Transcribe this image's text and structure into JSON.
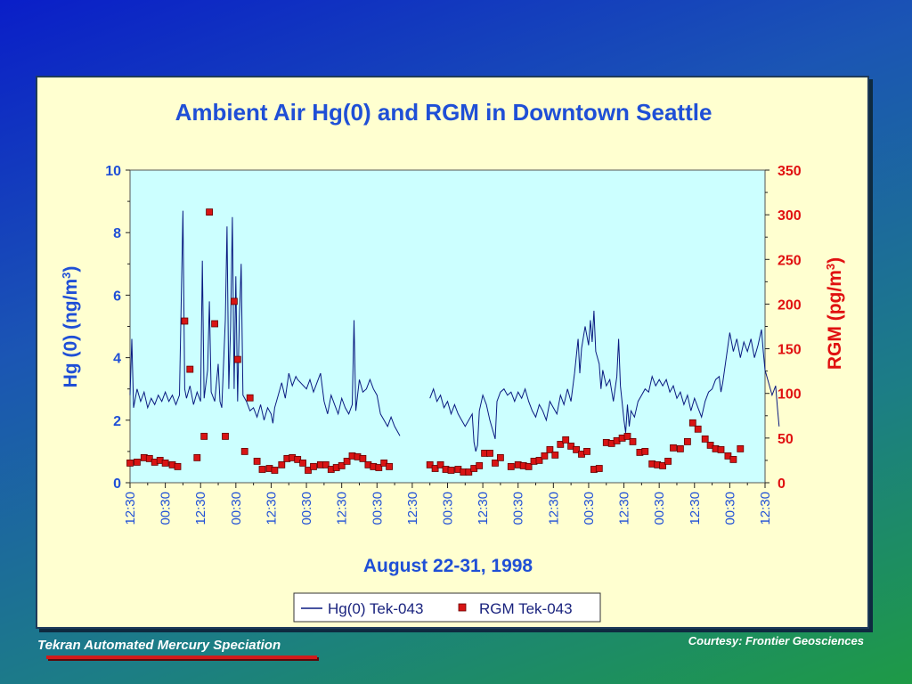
{
  "footer": {
    "left_text": "Tekran Automated Mercury Speciation",
    "right_text": "Courtesy: Frontier Geosciences"
  },
  "colors": {
    "title": "#1f4fd6",
    "left_axis": "#1f4fd6",
    "right_axis": "#e01010",
    "hg_line": "#0a1a80",
    "rgm_marker": "#d81414",
    "plot_bg": "#ccffff",
    "panel_bg": "#ffffd0"
  },
  "chart_data": {
    "type": "line",
    "title": "Ambient Air Hg(0) and RGM in Downtown Seattle",
    "xlabel": "August 22-31, 1998",
    "ylabel_left": "Hg (0) (ng/m3)",
    "ylabel_right": "RGM (pg/m3)",
    "ylim_left": [
      0,
      10
    ],
    "ylim_right": [
      0,
      350
    ],
    "yticks_left": [
      "0",
      "2",
      "4",
      "6",
      "8",
      "10"
    ],
    "yticks_right": [
      "0",
      "50",
      "100",
      "150",
      "200",
      "250",
      "300",
      "350"
    ],
    "x_tick_labels": [
      "12:30",
      "00:30",
      "12:30",
      "00:30",
      "12:30",
      "00:30",
      "12:30",
      "00:30",
      "12:30",
      "00:30",
      "12:30",
      "00:30",
      "12:30",
      "00:30",
      "12:30",
      "00:30",
      "12:30",
      "00:30",
      "12:30"
    ],
    "legend": [
      "Hg(0) Tek-043",
      "RGM Tek-043"
    ],
    "legend_placement": "bottom",
    "series": [
      {
        "name": "Hg(0) Tek-043",
        "axis": "left",
        "style": "line",
        "points": [
          [
            0.0,
            2.8
          ],
          [
            0.05,
            4.6
          ],
          [
            0.1,
            2.4
          ],
          [
            0.2,
            3.0
          ],
          [
            0.3,
            2.6
          ],
          [
            0.4,
            2.9
          ],
          [
            0.5,
            2.4
          ],
          [
            0.6,
            2.7
          ],
          [
            0.7,
            2.5
          ],
          [
            0.8,
            2.8
          ],
          [
            0.9,
            2.6
          ],
          [
            1.0,
            2.9
          ],
          [
            1.1,
            2.6
          ],
          [
            1.2,
            2.8
          ],
          [
            1.3,
            2.5
          ],
          [
            1.4,
            2.8
          ],
          [
            1.5,
            8.7
          ],
          [
            1.55,
            3.0
          ],
          [
            1.6,
            2.7
          ],
          [
            1.7,
            3.1
          ],
          [
            1.8,
            2.5
          ],
          [
            1.9,
            2.9
          ],
          [
            2.0,
            2.6
          ],
          [
            2.05,
            7.1
          ],
          [
            2.1,
            2.7
          ],
          [
            2.2,
            3.6
          ],
          [
            2.25,
            5.8
          ],
          [
            2.3,
            2.9
          ],
          [
            2.4,
            2.6
          ],
          [
            2.5,
            3.8
          ],
          [
            2.55,
            2.6
          ],
          [
            2.6,
            2.4
          ],
          [
            2.7,
            5.2
          ],
          [
            2.75,
            8.2
          ],
          [
            2.8,
            3.0
          ],
          [
            2.85,
            5.0
          ],
          [
            2.9,
            8.5
          ],
          [
            2.95,
            3.0
          ],
          [
            3.0,
            6.6
          ],
          [
            3.05,
            2.6
          ],
          [
            3.1,
            5.3
          ],
          [
            3.15,
            7.0
          ],
          [
            3.2,
            2.8
          ],
          [
            3.3,
            2.6
          ],
          [
            3.4,
            2.3
          ],
          [
            3.5,
            2.4
          ],
          [
            3.6,
            2.1
          ],
          [
            3.7,
            2.5
          ],
          [
            3.8,
            2.0
          ],
          [
            3.9,
            2.4
          ],
          [
            4.0,
            2.2
          ],
          [
            4.05,
            1.9
          ],
          [
            4.1,
            2.4
          ],
          [
            4.2,
            2.8
          ],
          [
            4.3,
            3.2
          ],
          [
            4.4,
            2.7
          ],
          [
            4.5,
            3.5
          ],
          [
            4.6,
            3.1
          ],
          [
            4.7,
            3.4
          ],
          [
            4.75,
            3.3
          ],
          [
            5.0,
            3.0
          ],
          [
            5.1,
            3.3
          ],
          [
            5.2,
            2.9
          ],
          [
            5.3,
            3.2
          ],
          [
            5.4,
            3.5
          ],
          [
            5.5,
            2.6
          ],
          [
            5.6,
            2.2
          ],
          [
            5.7,
            2.8
          ],
          [
            5.8,
            2.5
          ],
          [
            5.9,
            2.2
          ],
          [
            6.0,
            2.7
          ],
          [
            6.1,
            2.4
          ],
          [
            6.2,
            2.2
          ],
          [
            6.3,
            2.5
          ],
          [
            6.35,
            5.2
          ],
          [
            6.4,
            2.3
          ],
          [
            6.5,
            3.3
          ],
          [
            6.6,
            2.9
          ],
          [
            6.7,
            3.0
          ],
          [
            6.8,
            3.3
          ],
          [
            6.9,
            3.0
          ],
          [
            7.0,
            2.8
          ],
          [
            7.1,
            2.2
          ],
          [
            7.2,
            2.0
          ],
          [
            7.3,
            1.8
          ],
          [
            7.4,
            2.1
          ],
          [
            7.5,
            1.8
          ],
          [
            7.6,
            1.6
          ],
          [
            7.65,
            1.5
          ],
          [
            8.5,
            2.7
          ],
          [
            8.6,
            3.0
          ],
          [
            8.7,
            2.6
          ],
          [
            8.8,
            2.8
          ],
          [
            8.9,
            2.4
          ],
          [
            9.0,
            2.6
          ],
          [
            9.1,
            2.2
          ],
          [
            9.2,
            2.5
          ],
          [
            9.3,
            2.2
          ],
          [
            9.4,
            2.0
          ],
          [
            9.5,
            1.8
          ],
          [
            9.6,
            2.0
          ],
          [
            9.7,
            2.2
          ],
          [
            9.75,
            1.3
          ],
          [
            9.8,
            1.0
          ],
          [
            9.85,
            1.2
          ],
          [
            9.9,
            2.3
          ],
          [
            10.0,
            2.8
          ],
          [
            10.1,
            2.5
          ],
          [
            10.2,
            2.0
          ],
          [
            10.3,
            1.6
          ],
          [
            10.35,
            1.4
          ],
          [
            10.4,
            2.6
          ],
          [
            10.5,
            2.9
          ],
          [
            10.6,
            3.0
          ],
          [
            10.7,
            2.8
          ],
          [
            10.8,
            2.9
          ],
          [
            10.9,
            2.6
          ],
          [
            11.0,
            2.9
          ],
          [
            11.1,
            2.7
          ],
          [
            11.2,
            3.0
          ],
          [
            11.3,
            2.6
          ],
          [
            11.4,
            2.3
          ],
          [
            11.5,
            2.1
          ],
          [
            11.6,
            2.5
          ],
          [
            11.7,
            2.3
          ],
          [
            11.8,
            2.0
          ],
          [
            11.9,
            2.6
          ],
          [
            12.0,
            2.4
          ],
          [
            12.1,
            2.2
          ],
          [
            12.2,
            2.8
          ],
          [
            12.3,
            2.5
          ],
          [
            12.4,
            3.0
          ],
          [
            12.5,
            2.6
          ],
          [
            12.6,
            3.5
          ],
          [
            12.7,
            4.6
          ],
          [
            12.75,
            3.5
          ],
          [
            12.8,
            4.3
          ],
          [
            12.9,
            5.0
          ],
          [
            13.0,
            4.4
          ],
          [
            13.05,
            5.2
          ],
          [
            13.1,
            4.5
          ],
          [
            13.15,
            5.5
          ],
          [
            13.2,
            4.2
          ],
          [
            13.3,
            3.8
          ],
          [
            13.35,
            3.0
          ],
          [
            13.4,
            3.6
          ],
          [
            13.5,
            3.1
          ],
          [
            13.6,
            3.3
          ],
          [
            13.7,
            2.6
          ],
          [
            13.8,
            3.4
          ],
          [
            13.85,
            4.6
          ],
          [
            13.9,
            3.1
          ],
          [
            14.0,
            2.0
          ],
          [
            14.05,
            1.6
          ],
          [
            14.1,
            2.5
          ],
          [
            14.15,
            1.8
          ],
          [
            14.2,
            2.3
          ],
          [
            14.3,
            2.1
          ],
          [
            14.4,
            2.6
          ],
          [
            14.5,
            2.8
          ],
          [
            14.6,
            3.0
          ],
          [
            14.7,
            2.9
          ],
          [
            14.8,
            3.4
          ],
          [
            14.9,
            3.1
          ],
          [
            15.0,
            3.3
          ],
          [
            15.1,
            3.1
          ],
          [
            15.2,
            3.3
          ],
          [
            15.3,
            2.9
          ],
          [
            15.4,
            3.1
          ],
          [
            15.5,
            2.7
          ],
          [
            15.6,
            2.9
          ],
          [
            15.7,
            2.5
          ],
          [
            15.8,
            2.8
          ],
          [
            15.9,
            2.3
          ],
          [
            16.0,
            2.7
          ],
          [
            16.1,
            2.4
          ],
          [
            16.2,
            2.1
          ],
          [
            16.3,
            2.6
          ],
          [
            16.4,
            2.9
          ],
          [
            16.5,
            3.0
          ],
          [
            16.6,
            3.3
          ],
          [
            16.7,
            3.4
          ],
          [
            16.75,
            2.9
          ],
          [
            16.8,
            3.2
          ],
          [
            17.0,
            4.8
          ],
          [
            17.1,
            4.2
          ],
          [
            17.2,
            4.6
          ],
          [
            17.3,
            4.0
          ],
          [
            17.4,
            4.5
          ],
          [
            17.5,
            4.2
          ],
          [
            17.6,
            4.6
          ],
          [
            17.7,
            4.0
          ],
          [
            17.8,
            4.4
          ],
          [
            17.9,
            4.9
          ],
          [
            17.95,
            4.2
          ],
          [
            18.0,
            3.6
          ],
          [
            18.1,
            3.2
          ],
          [
            18.2,
            2.8
          ],
          [
            18.3,
            3.1
          ],
          [
            18.35,
            2.4
          ],
          [
            18.4,
            1.8
          ]
        ]
      },
      {
        "name": "RGM Tek-043",
        "axis": "right",
        "style": "markers",
        "points": [
          [
            0.0,
            22
          ],
          [
            0.2,
            23
          ],
          [
            0.4,
            28
          ],
          [
            0.55,
            27
          ],
          [
            0.7,
            23
          ],
          [
            0.85,
            25
          ],
          [
            1.0,
            22
          ],
          [
            1.2,
            20
          ],
          [
            1.35,
            18
          ],
          [
            1.55,
            181
          ],
          [
            1.7,
            127
          ],
          [
            1.9,
            28
          ],
          [
            2.1,
            52
          ],
          [
            2.25,
            303
          ],
          [
            2.4,
            178
          ],
          [
            2.7,
            52
          ],
          [
            2.95,
            203
          ],
          [
            3.05,
            138
          ],
          [
            3.25,
            35
          ],
          [
            3.4,
            95
          ],
          [
            3.6,
            24
          ],
          [
            3.75,
            15
          ],
          [
            3.95,
            16
          ],
          [
            4.1,
            14
          ],
          [
            4.3,
            20
          ],
          [
            4.45,
            27
          ],
          [
            4.6,
            28
          ],
          [
            4.75,
            26
          ],
          [
            4.9,
            22
          ],
          [
            5.05,
            14
          ],
          [
            5.2,
            18
          ],
          [
            5.4,
            20
          ],
          [
            5.55,
            20
          ],
          [
            5.7,
            15
          ],
          [
            5.85,
            17
          ],
          [
            6.0,
            19
          ],
          [
            6.15,
            24
          ],
          [
            6.3,
            30
          ],
          [
            6.45,
            29
          ],
          [
            6.6,
            27
          ],
          [
            6.75,
            20
          ],
          [
            6.9,
            18
          ],
          [
            7.05,
            17
          ],
          [
            7.2,
            22
          ],
          [
            7.35,
            18
          ],
          [
            8.5,
            20
          ],
          [
            8.65,
            16
          ],
          [
            8.8,
            20
          ],
          [
            8.95,
            15
          ],
          [
            9.1,
            14
          ],
          [
            9.3,
            15
          ],
          [
            9.45,
            12
          ],
          [
            9.6,
            12
          ],
          [
            9.75,
            16
          ],
          [
            9.9,
            19
          ],
          [
            10.05,
            33
          ],
          [
            10.2,
            33
          ],
          [
            10.35,
            22
          ],
          [
            10.5,
            28
          ],
          [
            10.8,
            18
          ],
          [
            11.0,
            20
          ],
          [
            11.15,
            19
          ],
          [
            11.3,
            18
          ],
          [
            11.45,
            24
          ],
          [
            11.6,
            25
          ],
          [
            11.75,
            30
          ],
          [
            11.9,
            37
          ],
          [
            12.05,
            31
          ],
          [
            12.2,
            43
          ],
          [
            12.35,
            48
          ],
          [
            12.5,
            41
          ],
          [
            12.65,
            37
          ],
          [
            12.8,
            32
          ],
          [
            12.95,
            35
          ],
          [
            13.15,
            15
          ],
          [
            13.3,
            16
          ],
          [
            13.5,
            45
          ],
          [
            13.65,
            44
          ],
          [
            13.8,
            47
          ],
          [
            13.95,
            50
          ],
          [
            14.1,
            52
          ],
          [
            14.25,
            46
          ],
          [
            14.45,
            34
          ],
          [
            14.6,
            35
          ],
          [
            14.8,
            21
          ],
          [
            14.95,
            20
          ],
          [
            15.1,
            19
          ],
          [
            15.25,
            24
          ],
          [
            15.4,
            39
          ],
          [
            15.6,
            38
          ],
          [
            15.8,
            46
          ],
          [
            15.95,
            67
          ],
          [
            16.1,
            60
          ],
          [
            16.3,
            49
          ],
          [
            16.45,
            42
          ],
          [
            16.6,
            38
          ],
          [
            16.75,
            37
          ],
          [
            16.95,
            30
          ],
          [
            17.1,
            26
          ],
          [
            17.3,
            38
          ]
        ]
      }
    ]
  }
}
